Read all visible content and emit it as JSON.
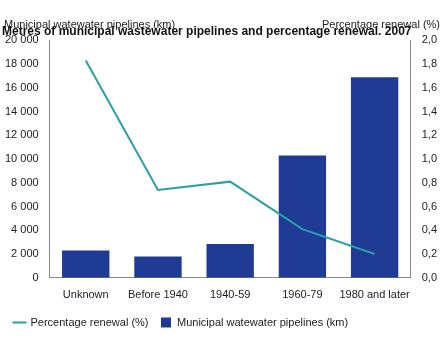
{
  "chart_data": {
    "type": "bar",
    "title": "Metres of municipal wastewater pipelines and percentage renewal. 2007",
    "ylabel": "Municipal watewater pipelines (km)",
    "y2label": "Percentage renewal (%)",
    "categories": [
      "Unknown",
      "Before 1940",
      "1940-59",
      "1960-79",
      "1980 and later"
    ],
    "series": [
      {
        "name": "Municipal watewater pipelines (km)",
        "type": "bar",
        "color": "#1f3b96",
        "values": [
          2300,
          1800,
          2850,
          10300,
          16900
        ]
      },
      {
        "name": "Percentage renewal (%)",
        "type": "line",
        "color": "#2a9fa6",
        "axis": "y2",
        "values": [
          1.83,
          0.74,
          0.81,
          0.41,
          0.2
        ]
      }
    ],
    "ylim": [
      0,
      20000
    ],
    "yticks": [
      0,
      {
        "value": 2000,
        "label": "2 000"
      },
      {
        "value": 4000,
        "label": "4 000"
      },
      {
        "value": 6000,
        "label": "6 000"
      },
      {
        "value": 8000,
        "label": "8 000"
      },
      {
        "value": 10000,
        "label": "10 000"
      },
      {
        "value": 12000,
        "label": "12 000"
      },
      {
        "value": 14000,
        "label": "14 000"
      },
      {
        "value": 16000,
        "label": "16 000"
      },
      {
        "value": 18000,
        "label": "18 000"
      },
      {
        "value": 20000,
        "label": "20 000"
      }
    ],
    "y2lim": [
      0,
      2
    ],
    "y2ticks": [
      {
        "value": 0,
        "label": "0,0"
      },
      {
        "value": 0.2,
        "label": "0,2"
      },
      {
        "value": 0.4,
        "label": "0,4"
      },
      {
        "value": 0.6,
        "label": "0,6"
      },
      {
        "value": 0.8,
        "label": "0,8"
      },
      {
        "value": 1,
        "label": "1,0"
      },
      {
        "value": 1.2,
        "label": "1,2"
      },
      {
        "value": 1.4,
        "label": "1,4"
      },
      {
        "value": 1.6,
        "label": "1,6"
      },
      {
        "value": 1.8,
        "label": "1,8"
      },
      {
        "value": 2,
        "label": "2,0"
      }
    ],
    "grid": false,
    "legend": "bottom"
  }
}
